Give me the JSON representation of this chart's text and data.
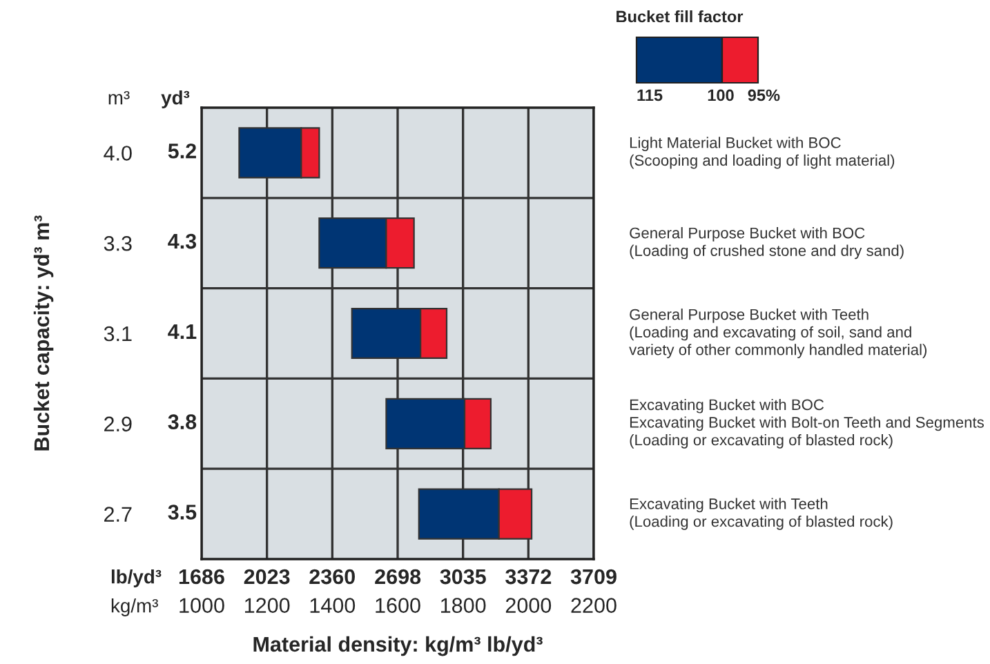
{
  "chart_data": {
    "type": "bar",
    "orientation": "horizontal",
    "categories": [
      "4.0",
      "3.3",
      "3.1",
      "2.9",
      "2.7"
    ],
    "y2_categories": [
      "5.2",
      "4.3",
      "4.1",
      "3.8",
      "3.5"
    ],
    "series": [
      {
        "color": "#003574",
        "base": [
          1115,
          1360,
          1460,
          1565,
          1665
        ],
        "values": [
          190,
          205,
          210,
          240,
          245
        ]
      },
      {
        "color": "#ed1c2e",
        "base": [
          1305,
          1565,
          1670,
          1805,
          1910
        ],
        "values": [
          55,
          85,
          80,
          80,
          100
        ]
      }
    ],
    "xlim": [
      1000,
      2200
    ],
    "xticks": [
      1000,
      1200,
      1400,
      1600,
      1800,
      2000,
      2200
    ],
    "x2lim": [
      1686,
      3709
    ],
    "x2ticks": [
      1686,
      2023,
      2360,
      2698,
      3035,
      3372,
      3709
    ],
    "xlabel": "Material density: kg/m³ lb/yd³",
    "ylabel": "Bucket capacity: yd³ m³",
    "legend_title": "Bucket fill factor",
    "grid": true,
    "annotations": [
      "m³",
      "yd³",
      "lb/yd³",
      "kg/m³",
      "115",
      "100",
      "95%",
      "Light Material Bucket with BOC\n(Scooping and loading of light material)",
      "General Purpose Bucket with BOC\n(Loading of crushed stone and dry sand)",
      "General Purpose Bucket with Teeth\n(Loading and excavating of soil, sand and\nvariety of other commonly handled material)",
      "Excavating Bucket with BOC\nExcavating Bucket with Bolt-on Teeth and Segments\n(Loading or excavating of blasted rock)",
      "Excavating Bucket with Teeth\n(Loading or excavating of blasted rock)"
    ]
  }
}
